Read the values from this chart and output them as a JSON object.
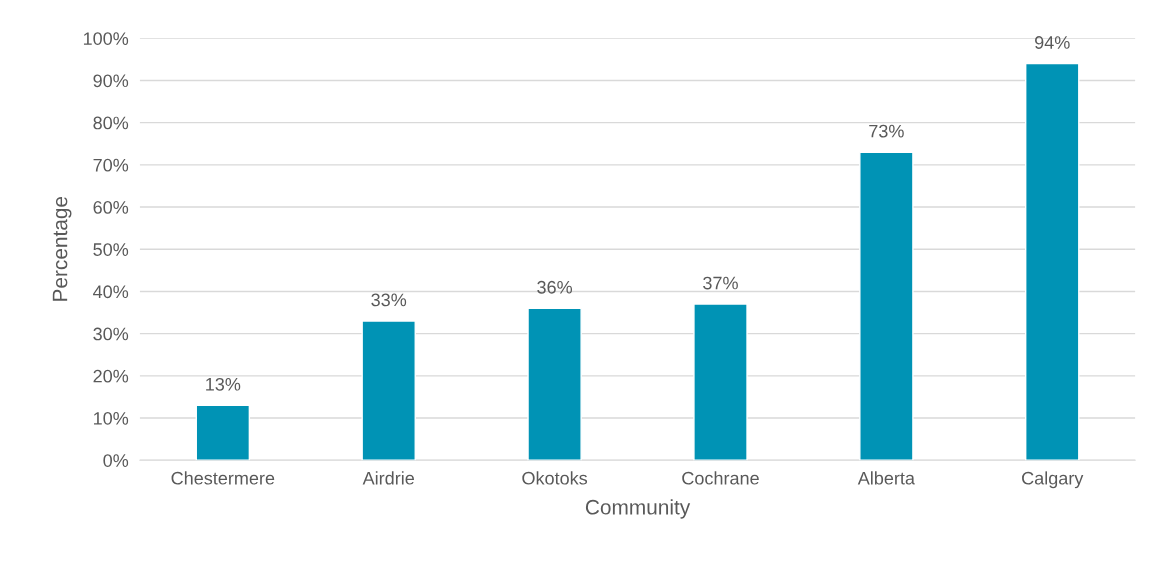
{
  "chart_data": {
    "type": "bar",
    "xlabel": "Community",
    "ylabel": "Percentage",
    "categories": [
      "Chestermere",
      "Airdrie",
      "Okotoks",
      "Cochrane",
      "Alberta",
      "Calgary"
    ],
    "values": [
      13,
      33,
      36,
      37,
      73,
      94
    ],
    "value_labels": [
      "13%",
      "33%",
      "36%",
      "37%",
      "73%",
      "94%"
    ],
    "color": "#0093b5",
    "ylim": [
      0,
      100
    ],
    "yticks": [
      {
        "value": 0,
        "label": "0%"
      },
      {
        "value": 10,
        "label": "10%"
      },
      {
        "value": 20,
        "label": "20%"
      },
      {
        "value": 30,
        "label": "30%"
      },
      {
        "value": 40,
        "label": "40%"
      },
      {
        "value": 50,
        "label": "50%"
      },
      {
        "value": 60,
        "label": "60%"
      },
      {
        "value": 70,
        "label": "70%"
      },
      {
        "value": 80,
        "label": "80%"
      },
      {
        "value": 90,
        "label": "90%"
      },
      {
        "value": 100,
        "label": "100%"
      }
    ],
    "grid": "y"
  }
}
